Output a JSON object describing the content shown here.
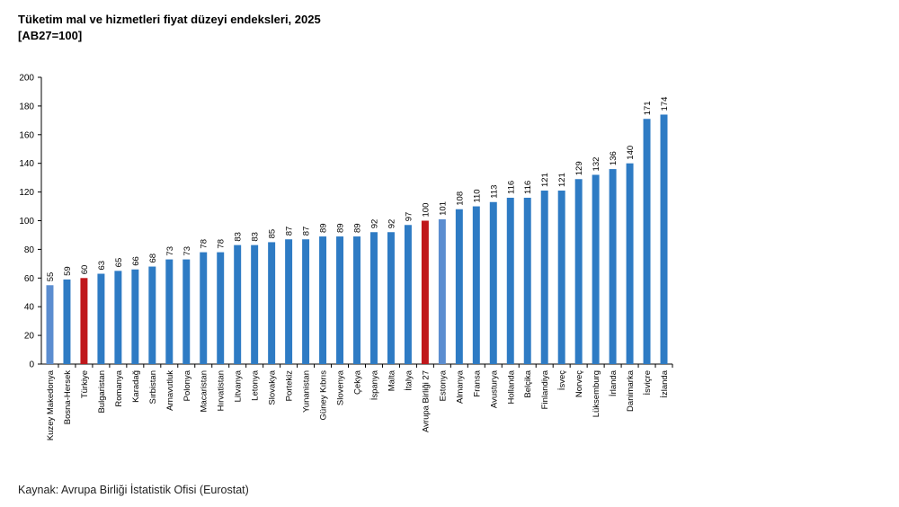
{
  "header": {
    "title": "Tüketim mal ve hizmetleri fiyat düzeyi endeksleri, 2025",
    "subtitle": "[AB27=100]"
  },
  "footer": {
    "source": "Kaynak: Avrupa Birliği İstatistik Ofisi (Eurostat)"
  },
  "colors": {
    "default_bar": "#2E7BC4",
    "highlight_turkey": "#C0171B",
    "highlight_eu": "#C0171B",
    "light_bar": "#5B8DD0"
  },
  "chart_data": {
    "type": "bar",
    "title": "Tüketim mal ve hizmetleri fiyat düzeyi endeksleri, 2025",
    "subtitle": "[AB27=100]",
    "xlabel": "",
    "ylabel": "",
    "ylim": [
      0,
      200
    ],
    "yticks": [
      0,
      20,
      40,
      60,
      80,
      100,
      120,
      140,
      160,
      180,
      200
    ],
    "grid": false,
    "legend": "none",
    "categories": [
      "Kuzey Makedonya",
      "Bosna-Hersek",
      "Türkiye",
      "Bulgaristan",
      "Romanya",
      "Karadağ",
      "Sırbistan",
      "Arnavutluk",
      "Polonya",
      "Macaristan",
      "Hırvatistan",
      "Litvanya",
      "Letonya",
      "Slovakya",
      "Portekiz",
      "Yunanistan",
      "Güney Kıbrıs",
      "Slovenya",
      "Çekya",
      "İspanya",
      "Malta",
      "İtalya",
      "Avrupa Birliği 27",
      "Estonya",
      "Almanya",
      "Fransa",
      "Avusturya",
      "Hollanda",
      "Belçika",
      "Finlandiya",
      "İsveç",
      "Norveç",
      "Lüksemburg",
      "İrlanda",
      "Danimarka",
      "İsviçre",
      "İzlanda"
    ],
    "values": [
      55,
      59,
      60,
      63,
      65,
      66,
      68,
      73,
      73,
      78,
      78,
      83,
      83,
      85,
      87,
      87,
      89,
      89,
      89,
      92,
      92,
      97,
      100,
      101,
      108,
      110,
      113,
      116,
      116,
      121,
      121,
      129,
      132,
      136,
      140,
      171,
      174
    ],
    "bar_colors": [
      "light",
      "default",
      "turkey",
      "default",
      "default",
      "default",
      "default",
      "default",
      "default",
      "default",
      "default",
      "default",
      "default",
      "default",
      "default",
      "default",
      "default",
      "default",
      "default",
      "default",
      "default",
      "default",
      "eu",
      "light",
      "default",
      "default",
      "default",
      "default",
      "default",
      "default",
      "default",
      "default",
      "default",
      "default",
      "default",
      "default",
      "default"
    ]
  }
}
